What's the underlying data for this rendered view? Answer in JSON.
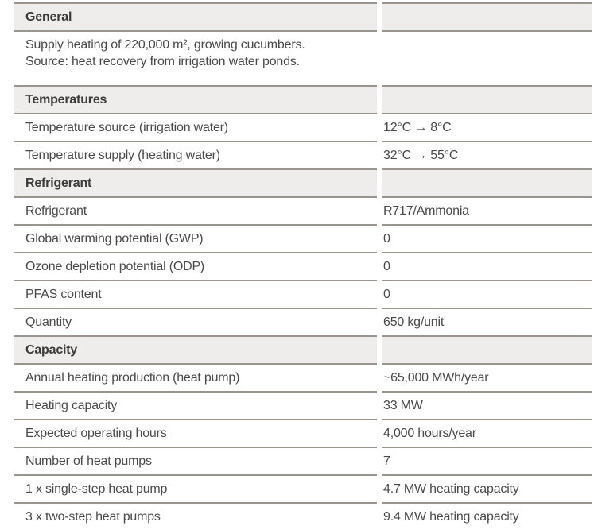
{
  "colors": {
    "header_band_background": "#eeedeb",
    "rule_line": "#9a948e",
    "header_text": "#3b3b3b",
    "body_text": "#4a4a4a"
  },
  "table": {
    "sections": [
      {
        "title": "General",
        "text_lines": [
          "Supply heating of 220,000 m², growing cucumbers.",
          "Source: heat recovery from irrigation water ponds."
        ]
      },
      {
        "title": "Temperatures",
        "rows": [
          {
            "label": "Temperature source (irrigation water)",
            "value": "12°C → 8°C"
          },
          {
            "label": "Temperature supply (heating water)",
            "value": "32°C → 55°C"
          }
        ]
      },
      {
        "title": "Refrigerant",
        "rows": [
          {
            "label": "Refrigerant",
            "value": "R717/Ammonia"
          },
          {
            "label": "Global warming potential (GWP)",
            "value": "0"
          },
          {
            "label": "Ozone depletion potential (ODP)",
            "value": "0"
          },
          {
            "label": "PFAS content",
            "value": "0"
          },
          {
            "label": "Quantity",
            "value": "650 kg/unit"
          }
        ]
      },
      {
        "title": "Capacity",
        "rows": [
          {
            "label": "Annual heating production (heat pump)",
            "value": "~65,000 MWh/year"
          },
          {
            "label": "Heating capacity",
            "value": "33 MW"
          },
          {
            "label": "Expected operating hours",
            "value": "4,000 hours/year"
          },
          {
            "label": "Number of heat pumps",
            "value": "7"
          },
          {
            "label": "1 x single-step heat pump",
            "value": "4.7 MW heating capacity"
          },
          {
            "label": "3 x two-step heat pumps",
            "value": "9.4 MW heating capacity"
          }
        ]
      }
    ]
  }
}
